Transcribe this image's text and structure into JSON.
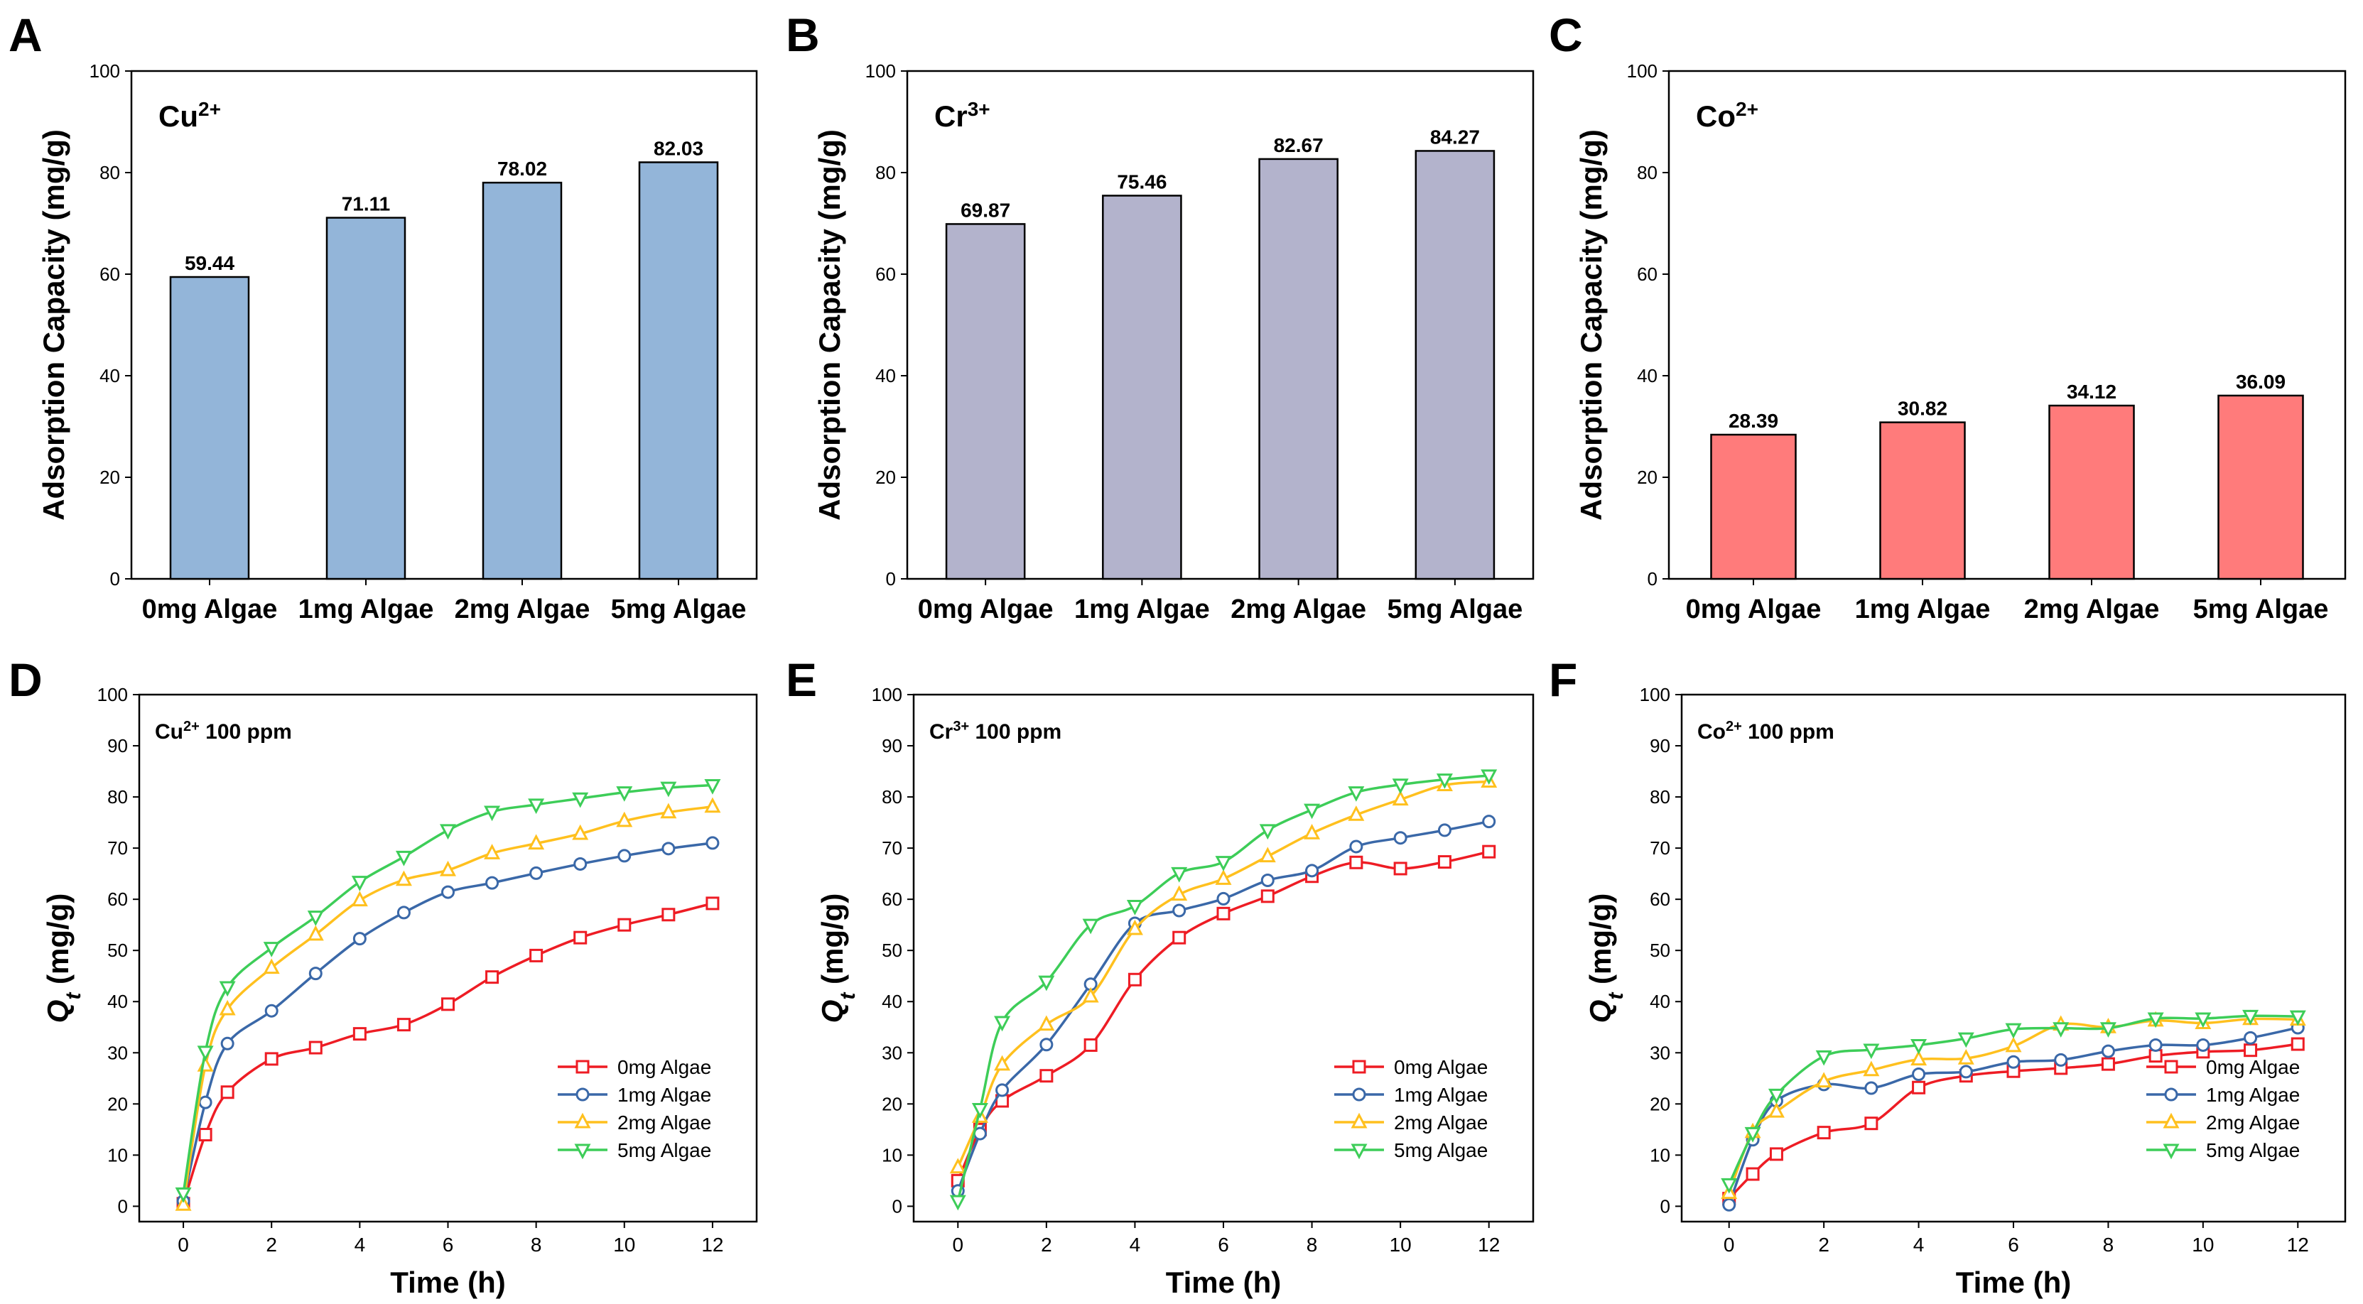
{
  "panel_labels": [
    "A",
    "B",
    "C",
    "D",
    "E",
    "F"
  ],
  "chart_data": [
    {
      "panel": "A",
      "type": "bar",
      "title_ion": "Cu",
      "title_charge": "2+",
      "categories": [
        "0mg Algae",
        "1mg Algae",
        "2mg Algae",
        "5mg Algae"
      ],
      "values": [
        59.44,
        71.11,
        78.02,
        82.03
      ],
      "value_labels": [
        "59.44",
        "71.11",
        "78.02",
        "82.03"
      ],
      "ylabel": "Adsorption Capacity (mg/g)",
      "ylim": [
        0,
        100
      ],
      "yticks": [
        0,
        20,
        40,
        60,
        80,
        100
      ],
      "bar_color": "#93b5d9"
    },
    {
      "panel": "B",
      "type": "bar",
      "title_ion": "Cr",
      "title_charge": "3+",
      "categories": [
        "0mg Algae",
        "1mg Algae",
        "2mg Algae",
        "5mg Algae"
      ],
      "values": [
        69.87,
        75.46,
        82.67,
        84.27
      ],
      "value_labels": [
        "69.87",
        "75.46",
        "82.67",
        "84.27"
      ],
      "ylabel": "Adsorption Capacity (mg/g)",
      "ylim": [
        0,
        100
      ],
      "yticks": [
        0,
        20,
        40,
        60,
        80,
        100
      ],
      "bar_color": "#b3b3cc"
    },
    {
      "panel": "C",
      "type": "bar",
      "title_ion": "Co",
      "title_charge": "2+",
      "categories": [
        "0mg Algae",
        "1mg Algae",
        "2mg Algae",
        "5mg Algae"
      ],
      "values": [
        28.39,
        30.82,
        34.12,
        36.09
      ],
      "value_labels": [
        "28.39",
        "30.82",
        "34.12",
        "36.09"
      ],
      "ylabel": "Adsorption Capacity (mg/g)",
      "ylim": [
        0,
        100
      ],
      "yticks": [
        0,
        20,
        40,
        60,
        80,
        100
      ],
      "bar_color": "#ff7b7b"
    },
    {
      "panel": "D",
      "type": "line",
      "title_ion": "Cu",
      "title_charge": "2+",
      "title_suffix": " 100 ppm",
      "x": [
        0,
        0.5,
        1,
        2,
        3,
        4,
        5,
        6,
        7,
        8,
        9,
        10,
        11,
        12
      ],
      "xlabel": "Time (h)",
      "ylabel_main": "Q",
      "ylabel_sub": "t",
      "ylabel_unit": " (mg/g)",
      "xlim": [
        -1,
        13
      ],
      "xticks": [
        0,
        2,
        4,
        6,
        8,
        10,
        12
      ],
      "ylim": [
        -3,
        100
      ],
      "yticks": [
        0,
        10,
        20,
        30,
        40,
        50,
        60,
        70,
        80,
        90,
        100
      ],
      "series": [
        {
          "name": "0mg Algae",
          "color": "#ee1c24",
          "marker": "square",
          "values": [
            0.5,
            14,
            22.3,
            28.8,
            31,
            33.7,
            35.5,
            39.5,
            44.8,
            49,
            52.5,
            55,
            57,
            59.2
          ]
        },
        {
          "name": "1mg Algae",
          "color": "#3a68a8",
          "marker": "circle",
          "values": [
            1,
            20.3,
            31.8,
            38.2,
            45.5,
            52.3,
            57.4,
            61.4,
            63.2,
            65.1,
            66.9,
            68.5,
            69.9,
            71
          ]
        },
        {
          "name": "2mg Algae",
          "color": "#ffc01e",
          "marker": "triangle-up",
          "values": [
            0.3,
            27.5,
            38.5,
            46.6,
            53.1,
            59.8,
            63.8,
            65.7,
            69,
            70.9,
            72.8,
            75.3,
            77,
            78.1
          ]
        },
        {
          "name": "5mg Algae",
          "color": "#3dcd58",
          "marker": "triangle-down",
          "values": [
            2.5,
            30.2,
            42.8,
            50.5,
            56.6,
            63.4,
            68.3,
            73.5,
            77.1,
            78.5,
            79.7,
            80.9,
            81.8,
            82.3
          ]
        }
      ]
    },
    {
      "panel": "E",
      "type": "line",
      "title_ion": "Cr",
      "title_charge": "3+",
      "title_suffix": " 100 ppm",
      "x": [
        0,
        0.5,
        1,
        2,
        3,
        4,
        5,
        6,
        7,
        8,
        9,
        10,
        11,
        12
      ],
      "xlabel": "Time (h)",
      "ylabel_main": "Q",
      "ylabel_sub": "t",
      "ylabel_unit": " (mg/g)",
      "xlim": [
        -1,
        13
      ],
      "xticks": [
        0,
        2,
        4,
        6,
        8,
        10,
        12
      ],
      "ylim": [
        -3,
        100
      ],
      "yticks": [
        0,
        10,
        20,
        30,
        40,
        50,
        60,
        70,
        80,
        90,
        100
      ],
      "series": [
        {
          "name": "0mg Algae",
          "color": "#ee1c24",
          "marker": "square",
          "values": [
            5,
            15,
            20.6,
            25.5,
            31.5,
            44.3,
            52.5,
            57.2,
            60.6,
            64.5,
            67.2,
            66,
            67.3,
            69.3
          ]
        },
        {
          "name": "1mg Algae",
          "color": "#3a68a8",
          "marker": "circle",
          "values": [
            3,
            14.2,
            22.7,
            31.6,
            43.4,
            55.3,
            57.8,
            60.1,
            63.7,
            65.6,
            70.3,
            72,
            73.5,
            75.2
          ]
        },
        {
          "name": "2mg Algae",
          "color": "#ffc01e",
          "marker": "triangle-up",
          "values": [
            7.6,
            17.5,
            27.7,
            35.5,
            41,
            54.2,
            60.9,
            64,
            68.4,
            72.9,
            76.5,
            79.5,
            82.3,
            83
          ]
        },
        {
          "name": "5mg Algae",
          "color": "#3dcd58",
          "marker": "triangle-down",
          "values": [
            1,
            19,
            36,
            43.9,
            55,
            58.7,
            65.1,
            67.3,
            73.5,
            77.5,
            80.9,
            82.4,
            83.4,
            84.2
          ]
        }
      ]
    },
    {
      "panel": "F",
      "type": "line",
      "title_ion": "Co",
      "title_charge": "2+",
      "title_suffix": " 100 ppm",
      "x": [
        0,
        0.5,
        1,
        2,
        3,
        4,
        5,
        6,
        7,
        8,
        9,
        10,
        11,
        12
      ],
      "xlabel": "Time (h)",
      "ylabel_main": "Q",
      "ylabel_sub": "t",
      "ylabel_unit": " (mg/g)",
      "xlim": [
        -1,
        13
      ],
      "xticks": [
        0,
        2,
        4,
        6,
        8,
        10,
        12
      ],
      "ylim": [
        -3,
        100
      ],
      "yticks": [
        0,
        10,
        20,
        30,
        40,
        50,
        60,
        70,
        80,
        90,
        100
      ],
      "series": [
        {
          "name": "0mg Algae",
          "color": "#ee1c24",
          "marker": "square",
          "values": [
            1.5,
            6.3,
            10.2,
            14.4,
            16.2,
            23.2,
            25.5,
            26.4,
            27,
            27.8,
            29.4,
            30.2,
            30.5,
            31.7
          ]
        },
        {
          "name": "1mg Algae",
          "color": "#3a68a8",
          "marker": "circle",
          "values": [
            0.3,
            13,
            20.6,
            23.8,
            23.1,
            25.8,
            26.3,
            28.2,
            28.6,
            30.3,
            31.5,
            31.5,
            32.9,
            34.9
          ]
        },
        {
          "name": "2mg Algae",
          "color": "#ffc01e",
          "marker": "triangle-up",
          "values": [
            2.6,
            14.5,
            18.5,
            24.4,
            26.6,
            28.7,
            28.9,
            31.3,
            35.5,
            35,
            36.3,
            35.8,
            36.6,
            36.5
          ]
        },
        {
          "name": "5mg Algae",
          "color": "#3dcd58",
          "marker": "triangle-down",
          "values": [
            4.3,
            14.3,
            21.8,
            29.3,
            30.6,
            31.5,
            32.8,
            34.6,
            34.8,
            34.8,
            36.7,
            36.7,
            37.2,
            37.1
          ]
        }
      ]
    }
  ]
}
